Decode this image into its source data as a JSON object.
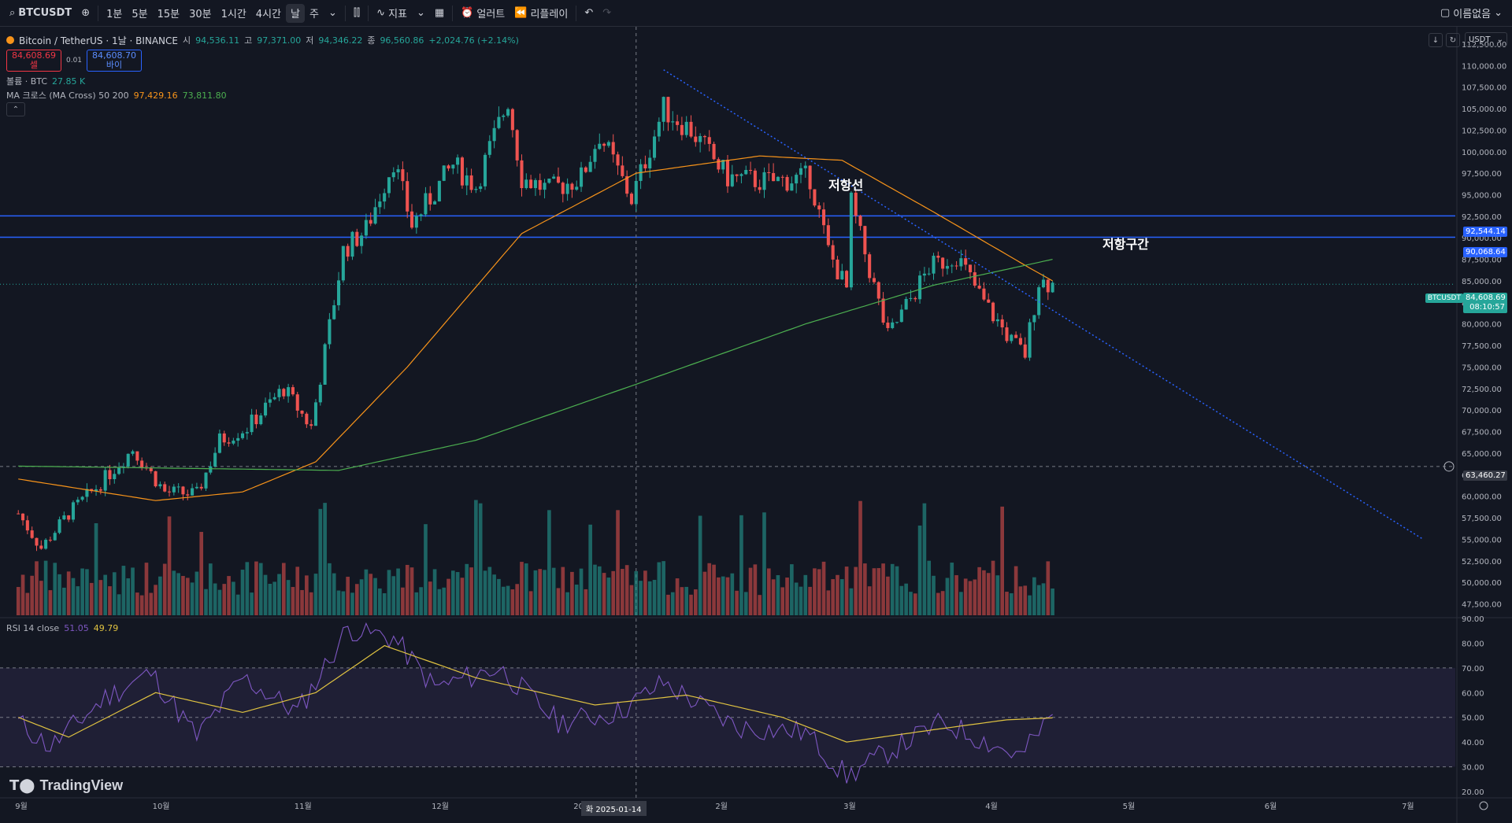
{
  "toolbar": {
    "symbol": "BTCUSDT",
    "intervals": [
      "1분",
      "5분",
      "15분",
      "30분",
      "1시간",
      "4시간",
      "날",
      "주"
    ],
    "active_interval": "날",
    "indicators_label": "지표",
    "alert_label": "얼러트",
    "replay_label": "리플레이",
    "layout_name": "이름없음"
  },
  "legend": {
    "title": "Bitcoin / TetherUS · 1날 · BINANCE",
    "open_label": "시",
    "open": "94,536.11",
    "high_label": "고",
    "high": "97,371.00",
    "low_label": "저",
    "low": "94,346.22",
    "close_label": "종",
    "close": "96,560.86",
    "change": "+2,024.76 (+2.14%)",
    "sell_price": "84,608.69",
    "sell_label": "셀",
    "spread": "0.01",
    "buy_price": "84,608.70",
    "buy_label": "바이",
    "volume_label": "볼륨 · BTC",
    "volume_value": "27.85 K",
    "ma_label": "MA 크로스 (MA Cross) 50 200",
    "ma50_value": "97,429.16",
    "ma200_value": "73,811.80",
    "rsi_label": "RSI 14 close",
    "rsi_value": "51.05",
    "rsi_ma_value": "49.79"
  },
  "currency": "USDT",
  "brand": "TradingView",
  "annotations": {
    "resistance_line": "저항선",
    "resistance_zone": "저항구간"
  },
  "price_labels": {
    "zone_top": "92,544.14",
    "zone_bottom": "90,068.64",
    "current_symbol": "BTCUSDT",
    "current_price": "84,608.69",
    "countdown": "08:10:57",
    "crosshair_price": "63,460.27",
    "crosshair_date": "화 2025-01-14"
  },
  "colors": {
    "up": "#26a69a",
    "down": "#ef5350",
    "ma50": "#f7931a",
    "ma200": "#4caf50",
    "zone": "#2962ff",
    "rsi": "#7e57c2",
    "rsi_ma": "#e0c341",
    "background": "#131722"
  },
  "chart_data": [
    {
      "type": "candlestick",
      "title": "Bitcoin / TetherUS · 1날 · BINANCE",
      "x_ticks": [
        "9월",
        "10월",
        "11월",
        "12월",
        "2025",
        "2월",
        "3월",
        "4월",
        "5월",
        "6월",
        "7월"
      ],
      "y_ticks": [
        "47,500.00",
        "50,000.00",
        "52,500.00",
        "55,000.00",
        "57,500.00",
        "60,000.00",
        "62,500.00",
        "65,000.00",
        "67,500.00",
        "70,000.00",
        "72,500.00",
        "75,000.00",
        "77,500.00",
        "80,000.00",
        "82,500.00",
        "85,000.00",
        "87,500.00",
        "90,000.00",
        "92,500.00",
        "95,000.00",
        "97,500.00",
        "100,000.00",
        "102,500.00",
        "105,000.00",
        "107,500.00",
        "110,000.00",
        "112,500.00"
      ],
      "ylim": [
        46000,
        114500
      ],
      "close_path": [
        {
          "date": "2024-09-01",
          "close": 58000
        },
        {
          "date": "2024-09-06",
          "close": 54000
        },
        {
          "date": "2024-09-12",
          "close": 58000
        },
        {
          "date": "2024-09-18",
          "close": 61000
        },
        {
          "date": "2024-09-26",
          "close": 65500
        },
        {
          "date": "2024-10-03",
          "close": 60500
        },
        {
          "date": "2024-10-10",
          "close": 60200
        },
        {
          "date": "2024-10-15",
          "close": 66500
        },
        {
          "date": "2024-10-21",
          "close": 68000
        },
        {
          "date": "2024-10-29",
          "close": 72500
        },
        {
          "date": "2024-11-04",
          "close": 68000
        },
        {
          "date": "2024-11-11",
          "close": 88500
        },
        {
          "date": "2024-11-16",
          "close": 91000
        },
        {
          "date": "2024-11-22",
          "close": 99000
        },
        {
          "date": "2024-11-26",
          "close": 91500
        },
        {
          "date": "2024-12-05",
          "close": 98500
        },
        {
          "date": "2024-12-10",
          "close": 96000
        },
        {
          "date": "2024-12-17",
          "close": 106000
        },
        {
          "date": "2024-12-20",
          "close": 97000
        },
        {
          "date": "2024-12-26",
          "close": 95500
        },
        {
          "date": "2025-01-02",
          "close": 97000
        },
        {
          "date": "2025-01-06",
          "close": 102000
        },
        {
          "date": "2025-01-13",
          "close": 94500
        },
        {
          "date": "2025-01-20",
          "close": 105000
        },
        {
          "date": "2025-01-26",
          "close": 102500
        },
        {
          "date": "2025-02-03",
          "close": 97000
        },
        {
          "date": "2025-02-12",
          "close": 96500
        },
        {
          "date": "2025-02-21",
          "close": 97000
        },
        {
          "date": "2025-02-25",
          "close": 88500
        },
        {
          "date": "2025-03-01",
          "close": 84000
        },
        {
          "date": "2025-03-02",
          "close": 94000
        },
        {
          "date": "2025-03-10",
          "close": 78500
        },
        {
          "date": "2025-03-19",
          "close": 86500
        },
        {
          "date": "2025-03-25",
          "close": 88000
        },
        {
          "date": "2025-03-31",
          "close": 82500
        },
        {
          "date": "2025-04-06",
          "close": 78000
        },
        {
          "date": "2025-04-09",
          "close": 76500
        },
        {
          "date": "2025-04-12",
          "close": 85000
        },
        {
          "date": "2025-04-15",
          "close": 84608.69
        }
      ],
      "ma50_path": [
        {
          "date": "2024-09-01",
          "value": 62000
        },
        {
          "date": "2024-10-01",
          "value": 59500
        },
        {
          "date": "2024-10-20",
          "value": 60500
        },
        {
          "date": "2024-11-05",
          "value": 64000
        },
        {
          "date": "2024-11-25",
          "value": 75000
        },
        {
          "date": "2024-12-20",
          "value": 90500
        },
        {
          "date": "2025-01-14",
          "value": 97500
        },
        {
          "date": "2025-02-10",
          "value": 99500
        },
        {
          "date": "2025-02-28",
          "value": 99000
        },
        {
          "date": "2025-03-20",
          "value": 93000
        },
        {
          "date": "2025-04-10",
          "value": 86500
        },
        {
          "date": "2025-04-15",
          "value": 85000
        }
      ],
      "ma200_path": [
        {
          "date": "2024-09-01",
          "value": 63500
        },
        {
          "date": "2024-11-10",
          "value": 63000
        },
        {
          "date": "2024-12-10",
          "value": 66500
        },
        {
          "date": "2025-01-14",
          "value": 73000
        },
        {
          "date": "2025-02-20",
          "value": 80000
        },
        {
          "date": "2025-03-20",
          "value": 84500
        },
        {
          "date": "2025-04-15",
          "value": 87500
        }
      ],
      "resistance_line": [
        {
          "date": "2025-01-20",
          "value": 109500
        },
        {
          "date": "2025-07-05",
          "value": 55000
        }
      ],
      "resistance_zone": [
        90068.64,
        92544.14
      ],
      "last_price": 84608.69,
      "crosshair": {
        "date": "2025-01-14",
        "price": 63460.27
      },
      "volume_series_name": "볼륨 · BTC"
    },
    {
      "type": "line",
      "title": "RSI 14 close",
      "y_ticks": [
        "20.00",
        "30.00",
        "40.00",
        "50.00",
        "60.00",
        "70.00",
        "80.00",
        "90.00"
      ],
      "ylim": [
        20,
        90
      ],
      "band": [
        30,
        70
      ],
      "rsi_path": [
        {
          "date": "2024-09-01",
          "value": 48
        },
        {
          "date": "2024-09-08",
          "value": 38
        },
        {
          "date": "2024-09-20",
          "value": 58
        },
        {
          "date": "2024-09-30",
          "value": 68
        },
        {
          "date": "2024-10-10",
          "value": 42
        },
        {
          "date": "2024-10-20",
          "value": 66
        },
        {
          "date": "2024-11-01",
          "value": 52
        },
        {
          "date": "2024-11-12",
          "value": 86
        },
        {
          "date": "2024-11-22",
          "value": 82
        },
        {
          "date": "2024-12-01",
          "value": 62
        },
        {
          "date": "2024-12-15",
          "value": 70
        },
        {
          "date": "2024-12-28",
          "value": 48
        },
        {
          "date": "2025-01-10",
          "value": 52
        },
        {
          "date": "2025-01-20",
          "value": 64
        },
        {
          "date": "2025-02-05",
          "value": 46
        },
        {
          "date": "2025-02-20",
          "value": 44
        },
        {
          "date": "2025-03-01",
          "value": 26
        },
        {
          "date": "2025-03-10",
          "value": 36
        },
        {
          "date": "2025-03-22",
          "value": 48
        },
        {
          "date": "2025-04-08",
          "value": 34
        },
        {
          "date": "2025-04-15",
          "value": 51.05
        }
      ],
      "rsi_ma_path": [
        {
          "date": "2024-09-01",
          "value": 50
        },
        {
          "date": "2024-09-12",
          "value": 42
        },
        {
          "date": "2024-10-01",
          "value": 60
        },
        {
          "date": "2024-10-20",
          "value": 52
        },
        {
          "date": "2024-11-05",
          "value": 60
        },
        {
          "date": "2024-11-20",
          "value": 79
        },
        {
          "date": "2024-12-10",
          "value": 66
        },
        {
          "date": "2025-01-05",
          "value": 55
        },
        {
          "date": "2025-01-25",
          "value": 59
        },
        {
          "date": "2025-02-15",
          "value": 50
        },
        {
          "date": "2025-03-01",
          "value": 40
        },
        {
          "date": "2025-03-20",
          "value": 45
        },
        {
          "date": "2025-04-05",
          "value": 49
        },
        {
          "date": "2025-04-15",
          "value": 49.79
        }
      ]
    }
  ]
}
